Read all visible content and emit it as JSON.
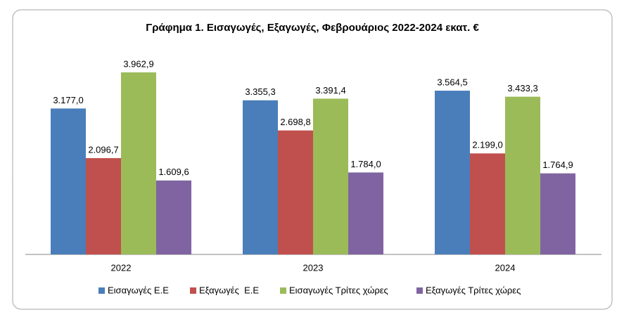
{
  "chart_data": {
    "type": "bar",
    "title": "Γράφημα 1. Εισαγωγές, Εξαγωγές, Φεβρουάριος 2022-2024 εκατ. €",
    "categories": [
      "2022",
      "2023",
      "2024"
    ],
    "series": [
      {
        "name": "Εισαγωγές Ε.Ε",
        "color": "#4a7ebb",
        "values": [
          3177.0,
          3355.3,
          3564.5
        ],
        "value_labels": [
          "3.177,0",
          "3.355,3",
          "3.564,5"
        ]
      },
      {
        "name": "Εξαγωγές  Ε.Ε",
        "color": "#c0504d",
        "values": [
          2096.7,
          2698.8,
          2199.0
        ],
        "value_labels": [
          "2.096,7",
          "2.698,8",
          "2.199,0"
        ]
      },
      {
        "name": "Εισαγωγές Τρίτες χώρες",
        "color": "#9bbb59",
        "values": [
          3962.9,
          3391.4,
          3433.3
        ],
        "value_labels": [
          "3.962,9",
          "3.391,4",
          "3.433,3"
        ]
      },
      {
        "name": "Εξαγωγές Τρίτες χώρες",
        "color": "#8064a2",
        "values": [
          1609.6,
          1784.0,
          1764.9
        ],
        "value_labels": [
          "1.609,6",
          "1.784,0",
          "1.764,9"
        ]
      }
    ],
    "legend": "bottom"
  }
}
